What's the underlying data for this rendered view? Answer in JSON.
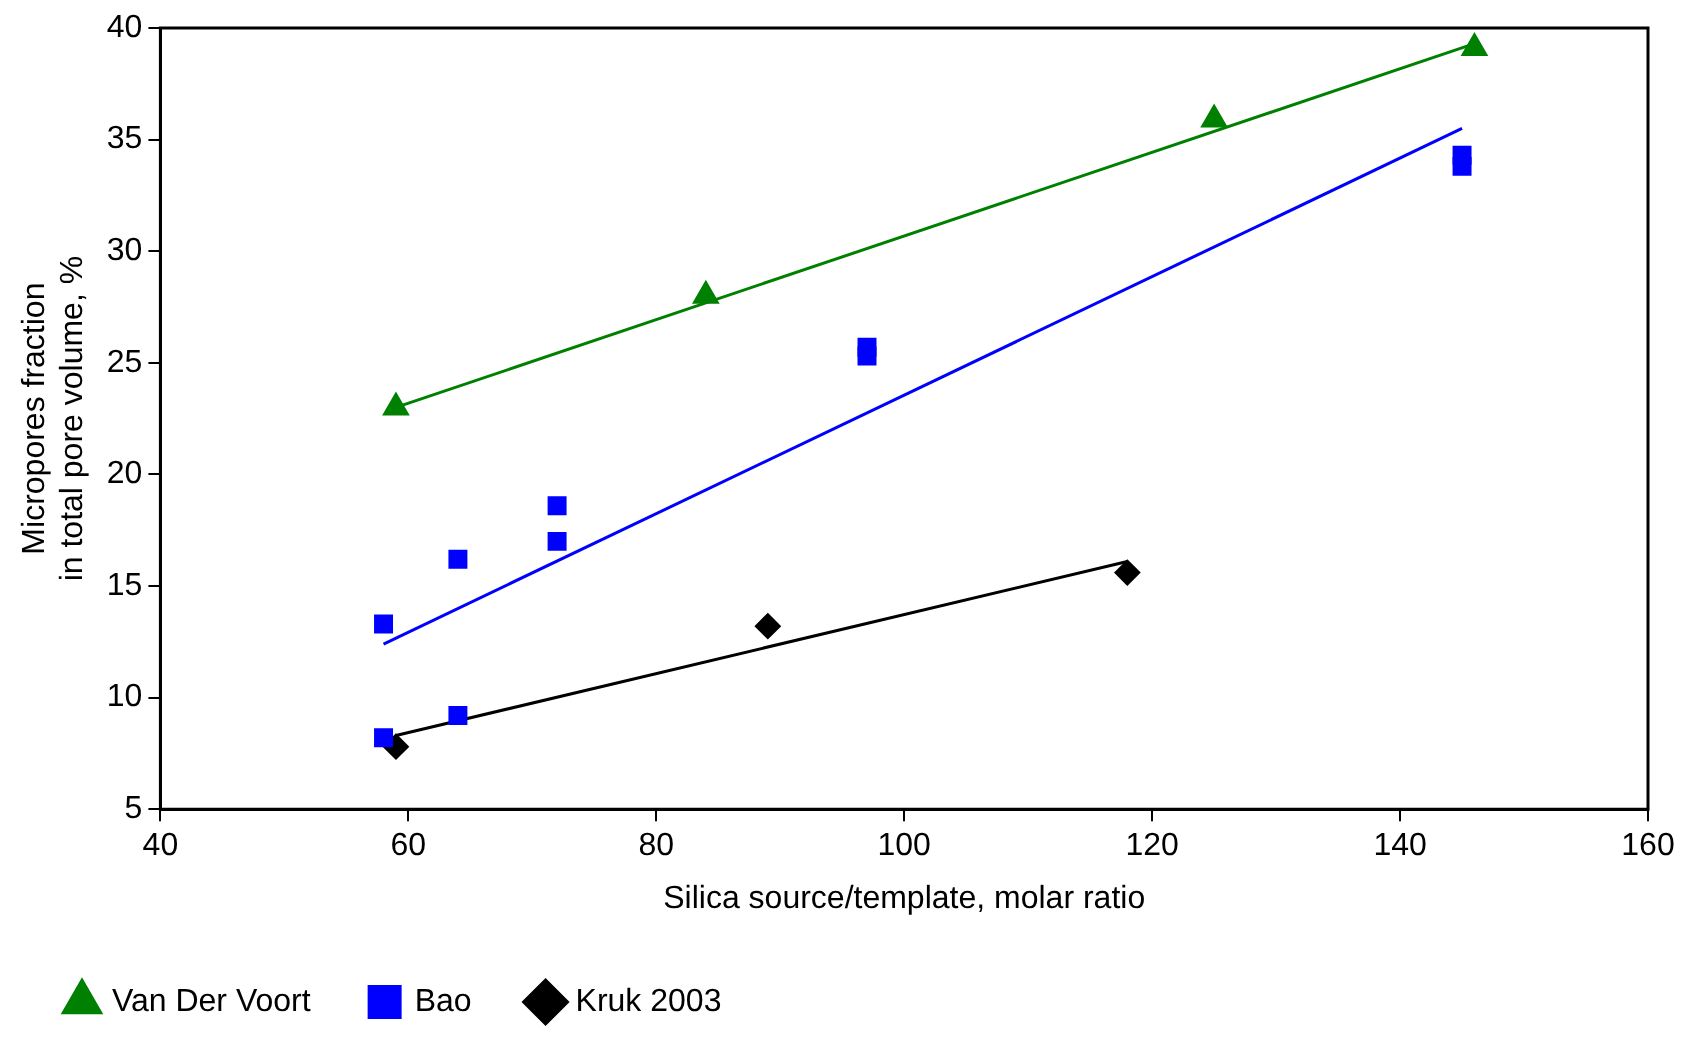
{
  "chart_data": {
    "type": "scatter",
    "xlabel": "Silica source/template, molar ratio",
    "ylabel": "Micropores fraction\nin total pore volume, %",
    "xlim": [
      40,
      160
    ],
    "xticks": [
      40,
      60,
      80,
      100,
      120,
      140,
      160
    ],
    "ylim": [
      5,
      40
    ],
    "yticks": [
      5,
      10,
      15,
      20,
      25,
      30,
      35,
      40
    ],
    "grid": false,
    "legend": "bottom",
    "series": [
      {
        "name": "Van Der Voort",
        "color": "#008000",
        "marker": "triangle",
        "x": [
          59,
          84,
          125,
          146
        ],
        "values": [
          23,
          28,
          35.9,
          39.1
        ]
      },
      {
        "name": "Bao",
        "color": "#0000ff",
        "marker": "square",
        "x": [
          58,
          58,
          64,
          64,
          72,
          72,
          97,
          97,
          145,
          145
        ],
        "values": [
          13.3,
          8.2,
          16.2,
          9.2,
          18.6,
          17.0,
          25.7,
          25.3,
          34.3,
          33.8
        ]
      },
      {
        "name": "Kruk 2003",
        "color": "#000000",
        "marker": "diamond",
        "x": [
          59,
          89,
          118
        ],
        "values": [
          7.8,
          13.2,
          15.6
        ]
      },
      {
        "type": "line",
        "color": "#008000",
        "marker": "none",
        "x": [
          59,
          146
        ],
        "values": [
          23,
          39.3
        ]
      },
      {
        "type": "line",
        "color": "#0000ff",
        "marker": "none",
        "x": [
          58,
          145
        ],
        "values": [
          12.4,
          35.5
        ]
      },
      {
        "type": "line",
        "color": "#000000",
        "marker": "none",
        "x": [
          59,
          118
        ],
        "values": [
          8.3,
          16.1
        ]
      }
    ]
  }
}
